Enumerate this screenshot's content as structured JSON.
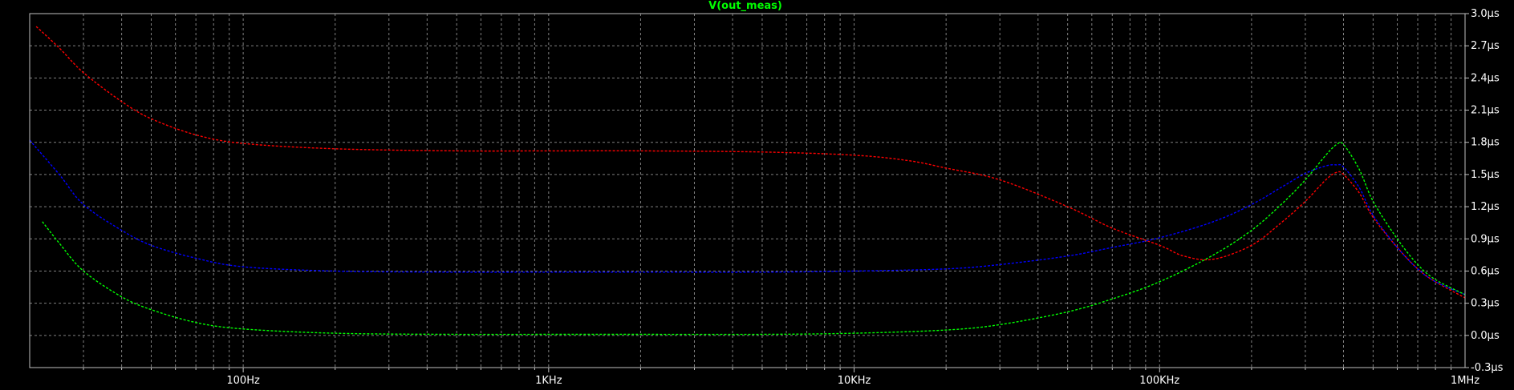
{
  "title": "V(out_meas)",
  "colors": {
    "background": "#000000",
    "frame": "#c0c0c0",
    "grid": "#808080",
    "tick_label": "#ffffff",
    "title": "#00ff00"
  },
  "chart_data": {
    "type": "line",
    "title": "V(out_meas)",
    "x_scale": "log",
    "x_unit": "Hz",
    "xlim": [
      20,
      1000000
    ],
    "ylim": [
      -0.3,
      3.0
    ],
    "y_unit": "µs",
    "grid": true,
    "line_style": "dashed",
    "x_ticks": [
      {
        "value": 100,
        "label": "100Hz"
      },
      {
        "value": 1000,
        "label": "1KHz"
      },
      {
        "value": 10000,
        "label": "10KHz"
      },
      {
        "value": 100000,
        "label": "100KHz"
      },
      {
        "value": 1000000,
        "label": "1MHz"
      }
    ],
    "y_ticks": [
      {
        "value": 3.0,
        "label": "3.0µs"
      },
      {
        "value": 2.7,
        "label": "2.7µs"
      },
      {
        "value": 2.4,
        "label": "2.4µs"
      },
      {
        "value": 2.1,
        "label": "2.1µs"
      },
      {
        "value": 1.8,
        "label": "1.8µs"
      },
      {
        "value": 1.5,
        "label": "1.5µs"
      },
      {
        "value": 1.2,
        "label": "1.2µs"
      },
      {
        "value": 0.9,
        "label": "0.9µs"
      },
      {
        "value": 0.6,
        "label": "0.6µs"
      },
      {
        "value": 0.3,
        "label": "0.3µs"
      },
      {
        "value": 0.0,
        "label": "0.0µs"
      },
      {
        "value": -0.3,
        "label": "-0.3µs"
      }
    ],
    "series": [
      {
        "color": "#ff0000",
        "x": [
          21,
          25,
          30,
          40,
          50,
          70,
          100,
          200,
          500,
          1000,
          2000,
          5000,
          10000,
          15000,
          20000,
          30000,
          50000,
          70000,
          100000,
          120000,
          150000,
          200000,
          250000,
          300000,
          350000,
          380000,
          400000,
          450000,
          500000,
          600000,
          700000,
          800000,
          1000000
        ],
        "y": [
          2.88,
          2.68,
          2.45,
          2.18,
          2.02,
          1.87,
          1.79,
          1.74,
          1.72,
          1.72,
          1.72,
          1.71,
          1.68,
          1.63,
          1.56,
          1.45,
          1.2,
          1.0,
          0.84,
          0.74,
          0.71,
          0.84,
          1.05,
          1.25,
          1.45,
          1.52,
          1.5,
          1.33,
          1.1,
          0.82,
          0.62,
          0.5,
          0.35
        ]
      },
      {
        "color": "#0000ff",
        "x": [
          20,
          25,
          30,
          40,
          50,
          70,
          100,
          200,
          500,
          1000,
          2000,
          5000,
          10000,
          20000,
          30000,
          50000,
          70000,
          100000,
          150000,
          200000,
          250000,
          300000,
          350000,
          380000,
          400000,
          450000,
          500000,
          600000,
          700000,
          800000,
          1000000
        ],
        "y": [
          1.82,
          1.5,
          1.22,
          0.98,
          0.84,
          0.72,
          0.64,
          0.6,
          0.59,
          0.59,
          0.59,
          0.59,
          0.6,
          0.62,
          0.66,
          0.74,
          0.82,
          0.91,
          1.06,
          1.22,
          1.38,
          1.51,
          1.58,
          1.59,
          1.57,
          1.38,
          1.12,
          0.82,
          0.62,
          0.5,
          0.38
        ]
      },
      {
        "color": "#00ff00",
        "x": [
          22,
          25,
          30,
          40,
          50,
          70,
          100,
          200,
          500,
          1000,
          2000,
          5000,
          10000,
          20000,
          30000,
          50000,
          70000,
          100000,
          150000,
          200000,
          250000,
          300000,
          350000,
          380000,
          400000,
          450000,
          500000,
          600000,
          700000,
          800000,
          1000000
        ],
        "y": [
          1.06,
          0.86,
          0.6,
          0.36,
          0.24,
          0.12,
          0.06,
          0.02,
          0.01,
          0.01,
          0.01,
          0.01,
          0.02,
          0.05,
          0.1,
          0.22,
          0.34,
          0.5,
          0.75,
          0.98,
          1.22,
          1.45,
          1.68,
          1.78,
          1.78,
          1.55,
          1.25,
          0.9,
          0.66,
          0.52,
          0.38
        ]
      }
    ]
  }
}
